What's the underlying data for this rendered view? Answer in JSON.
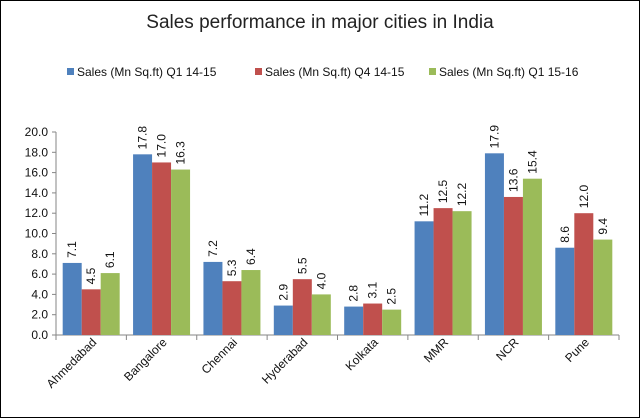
{
  "chart_data": {
    "type": "bar",
    "title": "Sales performance in major cities in India",
    "xlabel": "",
    "ylabel": "",
    "ylim": [
      0,
      20
    ],
    "yticks": [
      "0.0",
      "2.0",
      "4.0",
      "6.0",
      "8.0",
      "10.0",
      "12.0",
      "14.0",
      "16.0",
      "18.0",
      "20.0"
    ],
    "grid": false,
    "legend_position": "top",
    "categories": [
      "Ahmedabad",
      "Bangalore",
      "Chennai",
      "Hyderabad",
      "Kolkata",
      "MMR",
      "NCR",
      "Pune"
    ],
    "series": [
      {
        "name": "Sales (Mn Sq.ft) Q1 14-15",
        "color": "#4F81BD",
        "values": [
          7.1,
          17.8,
          7.2,
          2.9,
          2.8,
          11.2,
          17.9,
          8.6
        ],
        "labels": [
          "7.1",
          "17.8",
          "7.2",
          "2.9",
          "2.8",
          "11.2",
          "17.9",
          "8.6"
        ]
      },
      {
        "name": "Sales (Mn Sq.ft) Q4 14-15",
        "color": "#C0504D",
        "values": [
          4.5,
          17.0,
          5.3,
          5.5,
          3.1,
          12.5,
          13.6,
          12.0
        ],
        "labels": [
          "4.5",
          "17.0",
          "5.3",
          "5.5",
          "3.1",
          "12.5",
          "13.6",
          "12.0"
        ]
      },
      {
        "name": "Sales (Mn Sq.ft) Q1 15-16",
        "color": "#9BBB59",
        "values": [
          6.1,
          16.3,
          6.4,
          4.0,
          2.5,
          12.2,
          15.4,
          9.4
        ],
        "labels": [
          "6.1",
          "16.3",
          "6.4",
          "4.0",
          "2.5",
          "12.2",
          "15.4",
          "9.4"
        ]
      }
    ]
  }
}
